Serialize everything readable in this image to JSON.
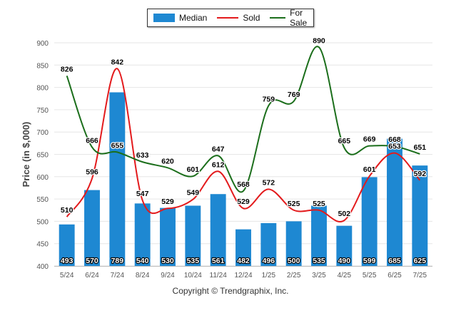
{
  "chart_data": {
    "type": "bar",
    "categories": [
      "5/24",
      "6/24",
      "7/24",
      "8/24",
      "9/24",
      "10/24",
      "11/24",
      "12/24",
      "1/25",
      "2/25",
      "3/25",
      "4/25",
      "5/25",
      "6/25",
      "7/25"
    ],
    "series": [
      {
        "name": "Median",
        "type": "bar",
        "color": "#1e88d2",
        "values": [
          493,
          570,
          789,
          540,
          530,
          535,
          561,
          482,
          496,
          500,
          535,
          490,
          599,
          685,
          625
        ]
      },
      {
        "name": "Sold",
        "type": "line",
        "color": "#e31a1c",
        "values": [
          510,
          596,
          842,
          547,
          529,
          549,
          612,
          529,
          572,
          525,
          525,
          502,
          601,
          653,
          592
        ]
      },
      {
        "name": "For Sale",
        "type": "line",
        "color": "#1b6e1b",
        "values": [
          826,
          666,
          655,
          633,
          620,
          601,
          647,
          568,
          759,
          769,
          890,
          665,
          669,
          668,
          651
        ]
      }
    ],
    "ylabel": "Price (in $,000)",
    "ylim": [
      400,
      900
    ],
    "yticks": [
      400,
      450,
      500,
      550,
      600,
      650,
      700,
      750,
      800,
      850,
      900
    ],
    "grid": true,
    "legend_position": "top-center"
  },
  "legend": {
    "median": "Median",
    "sold": "Sold",
    "for_sale": "For Sale"
  },
  "footer": {
    "copyright": "Copyright © Trendgraphix, Inc."
  }
}
